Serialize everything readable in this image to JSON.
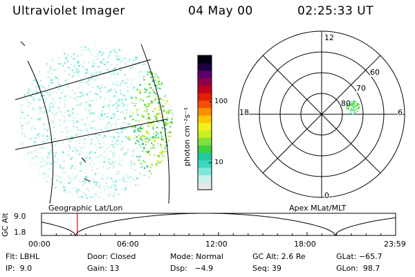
{
  "header": {
    "instrument": "Ultraviolet Imager",
    "date": "04 May 00",
    "time": "02:25:33 UT"
  },
  "colorbar": {
    "label": "photon cm⁻²s⁻¹",
    "ticks": [
      "100",
      "10"
    ],
    "colors": [
      "#e8e8e8",
      "#c8f0ec",
      "#7ee8d8",
      "#3cd8c0",
      "#22c8a0",
      "#40d040",
      "#80e040",
      "#c8f020",
      "#f0f020",
      "#f8c800",
      "#f89000",
      "#f05000",
      "#e02000",
      "#c00020",
      "#90004a",
      "#5a006a",
      "#1c0040",
      "#000010"
    ]
  },
  "geo_panel": {
    "caption": "Geographic Lat/Lon"
  },
  "polar_panel": {
    "caption": "Apex MLat/MLT",
    "mlt_labels": {
      "top": "12",
      "bottom": "0",
      "left": "18",
      "right": "6"
    },
    "lat_labels": [
      "60",
      "70",
      "80"
    ]
  },
  "altitude_plot": {
    "ylabel": "GC Alt",
    "ymax": "9.0",
    "ymin": "1.8",
    "x_ticks": [
      "00:00",
      "06:00",
      "12:00",
      "18:00",
      "23:59"
    ],
    "marker_time_hours": 2.43
  },
  "info": {
    "row1": {
      "filter": "Flt: LBHL",
      "door": "Door: Closed",
      "mode": "Mode: Normal",
      "gc_alt": "GC Alt: 2.6 Re",
      "glat": "GLat: −65.7"
    },
    "row2": {
      "ip": "IP:  9.0",
      "gain": "Gain: 13",
      "dsp": "Dsp:   −4.9",
      "seq": "Seq: 39",
      "glon": "GLon:  98.7"
    }
  }
}
